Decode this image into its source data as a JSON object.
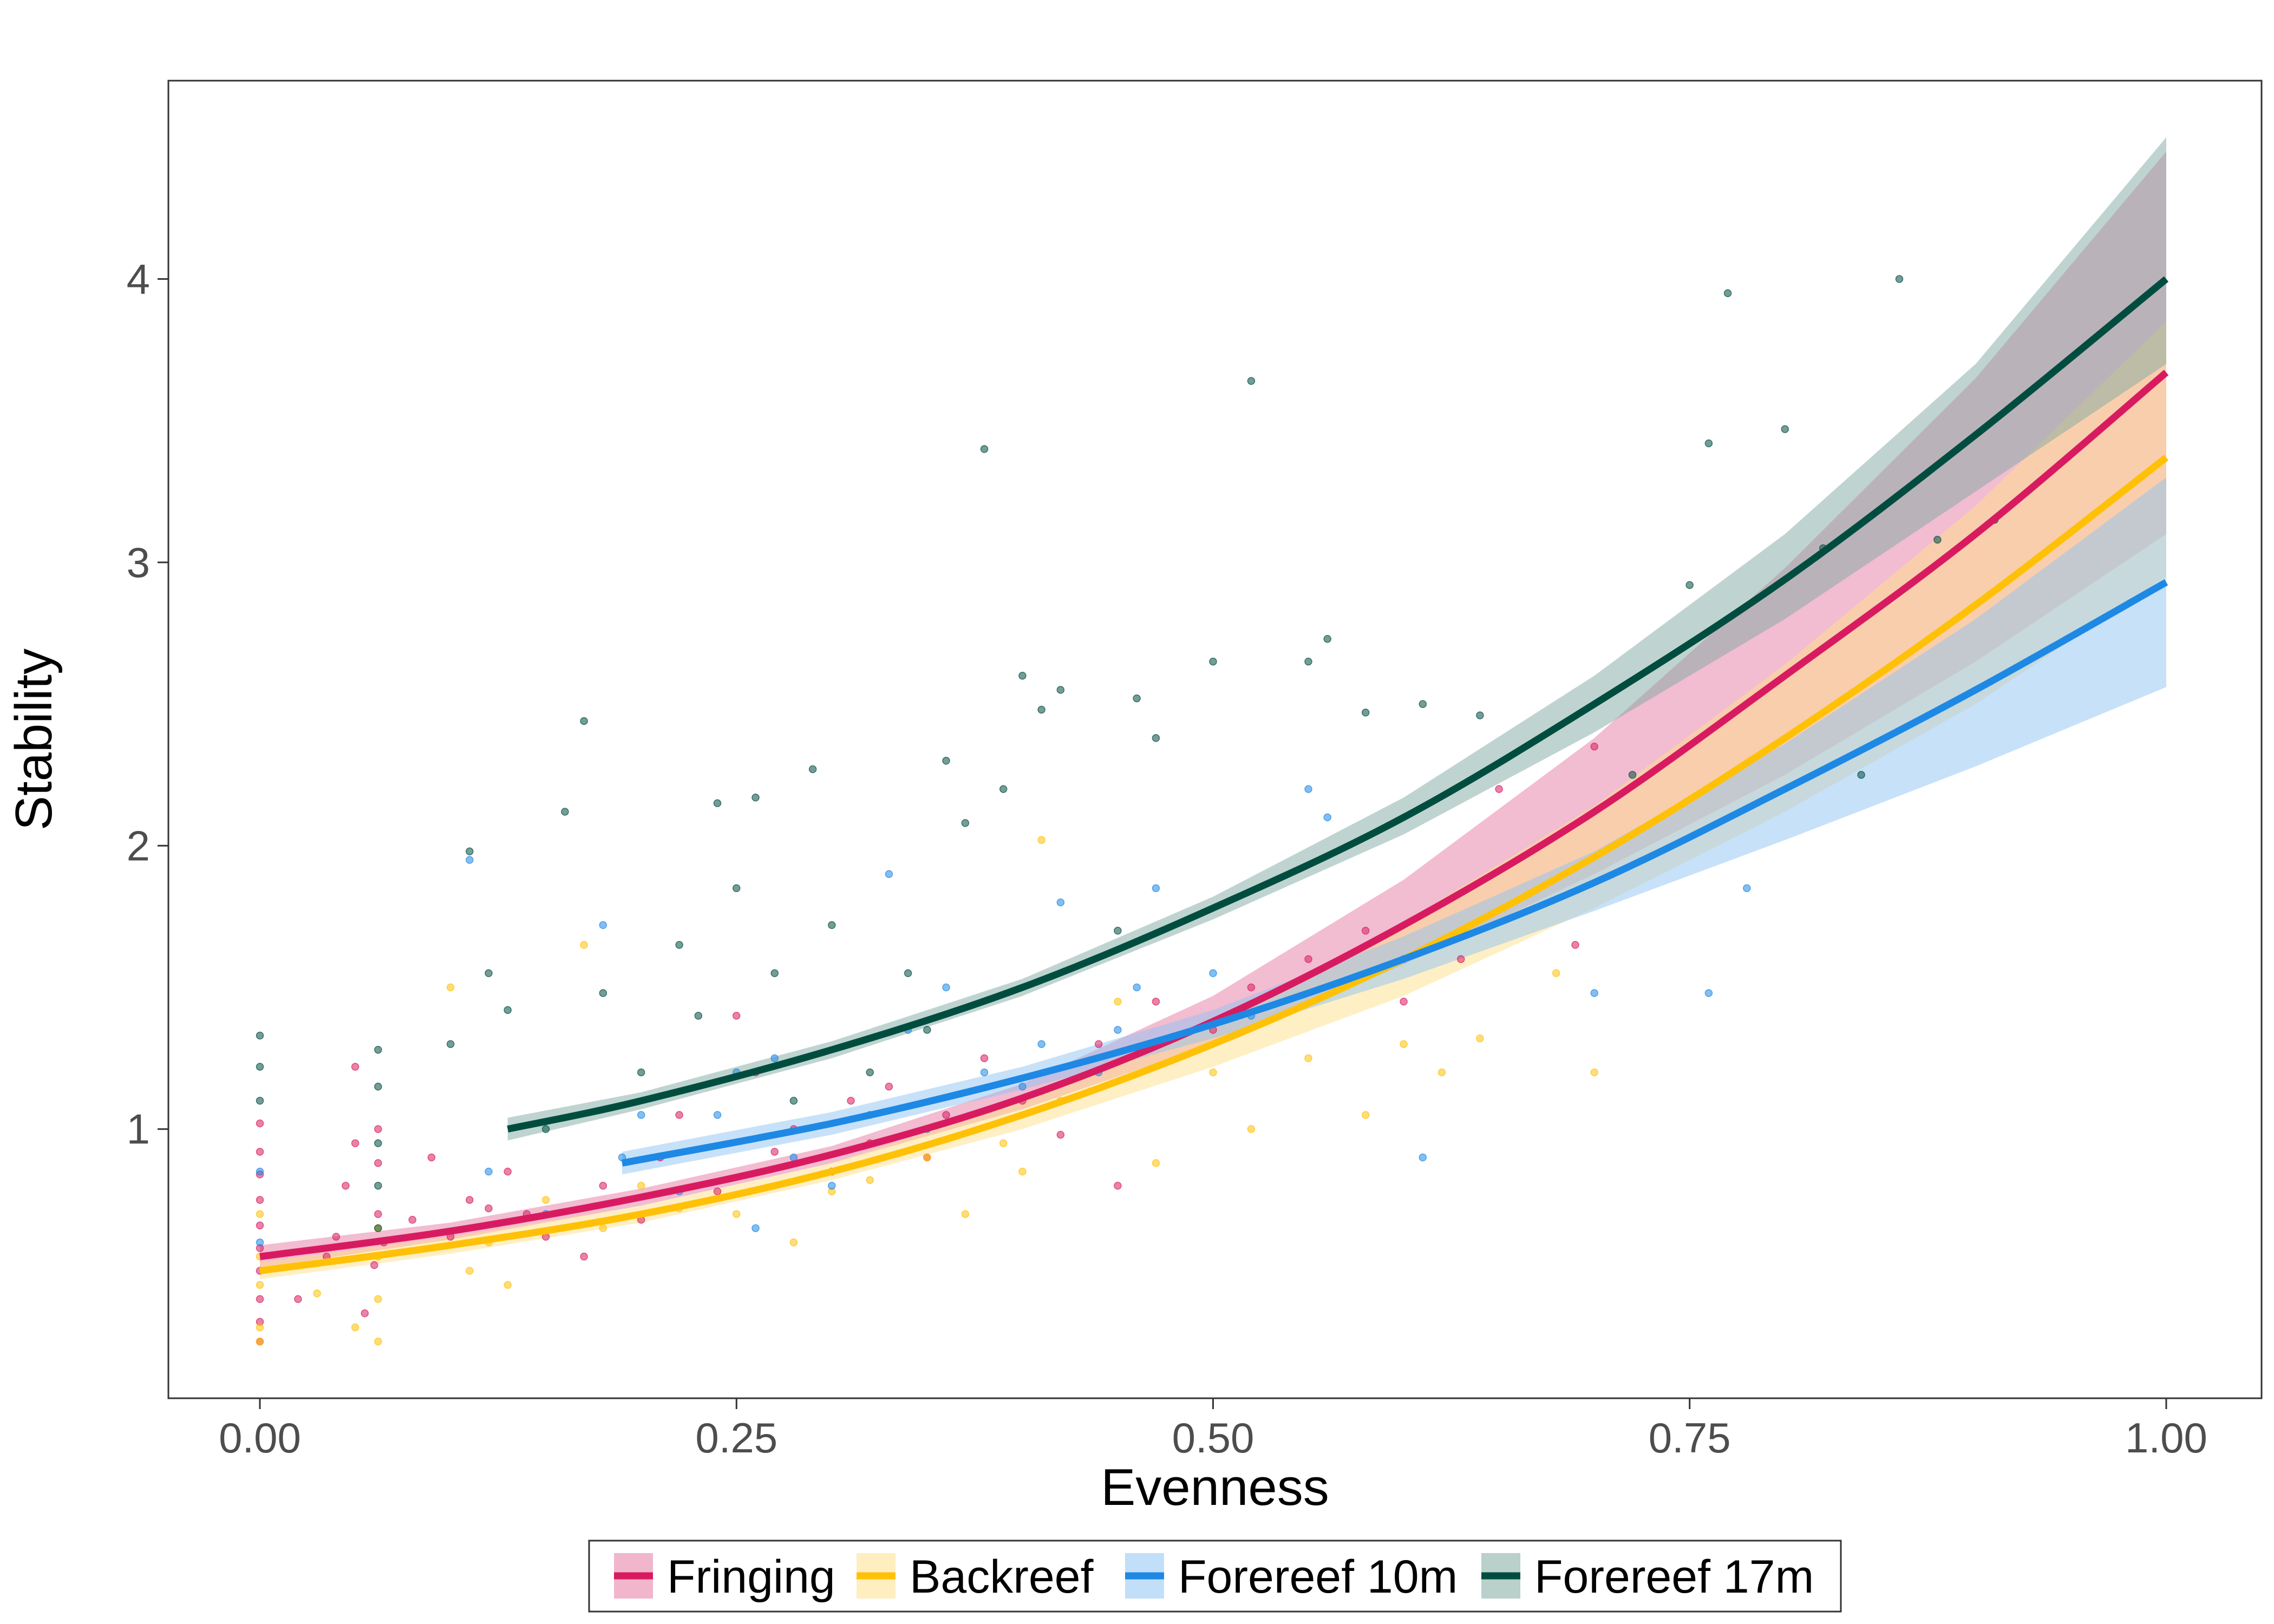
{
  "chart_data": {
    "type": "scatter",
    "xlabel": "Evenness",
    "ylabel": "Stability",
    "xlim": [
      -0.048,
      1.05
    ],
    "ylim": [
      0.05,
      4.7
    ],
    "x_ticks": [
      0.0,
      0.25,
      0.5,
      0.75,
      1.0
    ],
    "x_tick_labels": [
      "0.00",
      "0.25",
      "0.50",
      "0.75",
      "1.00"
    ],
    "y_ticks": [
      1,
      2,
      3,
      4
    ],
    "y_tick_labels": [
      "1",
      "2",
      "3",
      "4"
    ],
    "grid": false,
    "legend_position": "bottom",
    "series": [
      {
        "name": "Fringing",
        "color": "#d81b60",
        "band_color": "#e57aa3",
        "fit_x": [
          0.0,
          0.1,
          0.2,
          0.3,
          0.4,
          0.5,
          0.6,
          0.7,
          0.8,
          0.9,
          1.0
        ],
        "fit_y": [
          0.55,
          0.64,
          0.76,
          0.91,
          1.11,
          1.38,
          1.72,
          2.12,
          2.6,
          3.1,
          3.67
        ],
        "band_low": [
          0.51,
          0.61,
          0.73,
          0.88,
          1.07,
          1.3,
          1.58,
          1.9,
          2.25,
          2.65,
          3.1
        ],
        "band_high": [
          0.59,
          0.67,
          0.79,
          0.94,
          1.16,
          1.47,
          1.88,
          2.38,
          2.98,
          3.65,
          4.45
        ],
        "points": [
          [
            0.0,
            0.25
          ],
          [
            0.0,
            0.32
          ],
          [
            0.0,
            0.4
          ],
          [
            0.0,
            0.5
          ],
          [
            0.0,
            0.58
          ],
          [
            0.0,
            0.66
          ],
          [
            0.0,
            0.75
          ],
          [
            0.0,
            0.84
          ],
          [
            0.0,
            0.92
          ],
          [
            0.0,
            1.02
          ],
          [
            0.02,
            0.4
          ],
          [
            0.035,
            0.55
          ],
          [
            0.04,
            0.62
          ],
          [
            0.045,
            0.8
          ],
          [
            0.05,
            0.95
          ],
          [
            0.05,
            1.22
          ],
          [
            0.055,
            0.35
          ],
          [
            0.06,
            0.52
          ],
          [
            0.062,
            0.7
          ],
          [
            0.062,
            0.88
          ],
          [
            0.062,
            1.0
          ],
          [
            0.065,
            0.6
          ],
          [
            0.08,
            0.68
          ],
          [
            0.09,
            0.9
          ],
          [
            0.1,
            0.62
          ],
          [
            0.11,
            0.75
          ],
          [
            0.12,
            0.72
          ],
          [
            0.13,
            0.85
          ],
          [
            0.14,
            0.7
          ],
          [
            0.15,
            0.62
          ],
          [
            0.17,
            0.55
          ],
          [
            0.18,
            0.8
          ],
          [
            0.2,
            0.68
          ],
          [
            0.21,
            0.9
          ],
          [
            0.22,
            1.05
          ],
          [
            0.24,
            0.78
          ],
          [
            0.25,
            1.4
          ],
          [
            0.26,
            1.2
          ],
          [
            0.27,
            0.92
          ],
          [
            0.28,
            1.0
          ],
          [
            0.3,
            0.85
          ],
          [
            0.31,
            1.1
          ],
          [
            0.32,
            0.95
          ],
          [
            0.33,
            1.15
          ],
          [
            0.35,
            0.9
          ],
          [
            0.36,
            1.05
          ],
          [
            0.38,
            1.25
          ],
          [
            0.4,
            1.1
          ],
          [
            0.42,
            0.98
          ],
          [
            0.44,
            1.3
          ],
          [
            0.45,
            0.8
          ],
          [
            0.47,
            1.45
          ],
          [
            0.5,
            1.35
          ],
          [
            0.52,
            1.5
          ],
          [
            0.55,
            1.6
          ],
          [
            0.58,
            1.7
          ],
          [
            0.6,
            1.45
          ],
          [
            0.63,
            1.6
          ],
          [
            0.65,
            2.2
          ],
          [
            0.69,
            1.65
          ],
          [
            0.7,
            2.35
          ]
        ]
      },
      {
        "name": "Backreef",
        "color": "#ffc107",
        "band_color": "#ffe08a",
        "fit_x": [
          0.0,
          0.1,
          0.2,
          0.3,
          0.4,
          0.5,
          0.6,
          0.7,
          0.8,
          0.9,
          1.0
        ],
        "fit_y": [
          0.5,
          0.59,
          0.7,
          0.85,
          1.05,
          1.3,
          1.6,
          1.96,
          2.38,
          2.85,
          3.37
        ],
        "band_low": [
          0.47,
          0.56,
          0.67,
          0.82,
          1.0,
          1.22,
          1.47,
          1.78,
          2.12,
          2.5,
          2.95
        ],
        "band_high": [
          0.53,
          0.62,
          0.73,
          0.88,
          1.1,
          1.38,
          1.73,
          2.14,
          2.64,
          3.2,
          3.85
        ],
        "points": [
          [
            0.0,
            0.25
          ],
          [
            0.0,
            0.3
          ],
          [
            0.0,
            0.45
          ],
          [
            0.0,
            0.55
          ],
          [
            0.0,
            0.7
          ],
          [
            0.03,
            0.42
          ],
          [
            0.05,
            0.3
          ],
          [
            0.062,
            0.25
          ],
          [
            0.062,
            0.4
          ],
          [
            0.062,
            0.55
          ],
          [
            0.062,
            0.65
          ],
          [
            0.1,
            1.5
          ],
          [
            0.11,
            0.5
          ],
          [
            0.12,
            0.6
          ],
          [
            0.13,
            0.45
          ],
          [
            0.15,
            0.75
          ],
          [
            0.17,
            1.65
          ],
          [
            0.18,
            0.65
          ],
          [
            0.2,
            0.8
          ],
          [
            0.22,
            0.72
          ],
          [
            0.25,
            0.7
          ],
          [
            0.28,
            0.6
          ],
          [
            0.3,
            0.78
          ],
          [
            0.32,
            0.82
          ],
          [
            0.35,
            0.9
          ],
          [
            0.37,
            0.7
          ],
          [
            0.39,
            0.95
          ],
          [
            0.4,
            0.85
          ],
          [
            0.41,
            2.02
          ],
          [
            0.42,
            1.1
          ],
          [
            0.45,
            1.45
          ],
          [
            0.47,
            0.88
          ],
          [
            0.5,
            1.2
          ],
          [
            0.52,
            1.0
          ],
          [
            0.55,
            1.25
          ],
          [
            0.58,
            1.05
          ],
          [
            0.6,
            1.3
          ],
          [
            0.62,
            1.2
          ],
          [
            0.64,
            1.32
          ],
          [
            0.68,
            1.55
          ],
          [
            0.7,
            1.2
          ]
        ]
      },
      {
        "name": "Forereef 10m",
        "color": "#1e88e5",
        "band_color": "#90c4f4",
        "fit_x": [
          0.19,
          0.3,
          0.4,
          0.5,
          0.6,
          0.7,
          0.8,
          0.9,
          1.0
        ],
        "fit_y": [
          0.88,
          1.02,
          1.18,
          1.37,
          1.6,
          1.87,
          2.2,
          2.55,
          2.93
        ],
        "band_low": [
          0.84,
          0.98,
          1.14,
          1.32,
          1.53,
          1.77,
          2.02,
          2.28,
          2.56
        ],
        "band_high": [
          0.92,
          1.06,
          1.22,
          1.42,
          1.68,
          1.98,
          2.36,
          2.8,
          3.3
        ],
        "points": [
          [
            0.0,
            0.6
          ],
          [
            0.0,
            0.85
          ],
          [
            0.11,
            1.95
          ],
          [
            0.12,
            0.85
          ],
          [
            0.15,
            0.7
          ],
          [
            0.18,
            1.72
          ],
          [
            0.19,
            0.9
          ],
          [
            0.2,
            1.05
          ],
          [
            0.22,
            0.78
          ],
          [
            0.24,
            1.05
          ],
          [
            0.25,
            1.2
          ],
          [
            0.26,
            0.65
          ],
          [
            0.27,
            1.25
          ],
          [
            0.28,
            0.9
          ],
          [
            0.3,
            0.8
          ],
          [
            0.32,
            1.05
          ],
          [
            0.33,
            1.9
          ],
          [
            0.34,
            1.35
          ],
          [
            0.35,
            1.0
          ],
          [
            0.36,
            1.5
          ],
          [
            0.38,
            1.2
          ],
          [
            0.4,
            1.15
          ],
          [
            0.41,
            1.3
          ],
          [
            0.42,
            1.8
          ],
          [
            0.44,
            1.2
          ],
          [
            0.45,
            1.35
          ],
          [
            0.46,
            1.5
          ],
          [
            0.47,
            1.85
          ],
          [
            0.5,
            1.55
          ],
          [
            0.52,
            1.4
          ],
          [
            0.55,
            2.2
          ],
          [
            0.56,
            2.1
          ],
          [
            0.6,
            1.6
          ],
          [
            0.61,
            0.9
          ],
          [
            0.7,
            1.48
          ],
          [
            0.76,
            1.48
          ],
          [
            0.78,
            1.85
          ]
        ]
      },
      {
        "name": "Forereef 17m",
        "color": "#004d40",
        "band_color": "#7faaa1",
        "fit_x": [
          0.13,
          0.2,
          0.3,
          0.4,
          0.5,
          0.6,
          0.7,
          0.8,
          0.9,
          1.0
        ],
        "fit_y": [
          1.0,
          1.1,
          1.28,
          1.5,
          1.78,
          2.1,
          2.5,
          2.94,
          3.45,
          4.0
        ],
        "band_low": [
          0.96,
          1.07,
          1.25,
          1.47,
          1.74,
          2.04,
          2.4,
          2.8,
          3.25,
          3.7
        ],
        "band_high": [
          1.04,
          1.13,
          1.31,
          1.53,
          1.82,
          2.17,
          2.6,
          3.1,
          3.7,
          4.5
        ],
        "points": [
          [
            0.0,
            1.1
          ],
          [
            0.0,
            1.22
          ],
          [
            0.0,
            1.33
          ],
          [
            0.062,
            0.65
          ],
          [
            0.062,
            0.8
          ],
          [
            0.062,
            0.95
          ],
          [
            0.062,
            1.15
          ],
          [
            0.062,
            1.28
          ],
          [
            0.1,
            1.3
          ],
          [
            0.11,
            1.98
          ],
          [
            0.12,
            1.55
          ],
          [
            0.13,
            1.42
          ],
          [
            0.15,
            1.0
          ],
          [
            0.16,
            2.12
          ],
          [
            0.17,
            2.44
          ],
          [
            0.18,
            1.48
          ],
          [
            0.2,
            1.2
          ],
          [
            0.22,
            1.65
          ],
          [
            0.23,
            1.4
          ],
          [
            0.24,
            2.15
          ],
          [
            0.25,
            1.85
          ],
          [
            0.26,
            2.17
          ],
          [
            0.27,
            1.55
          ],
          [
            0.28,
            1.1
          ],
          [
            0.29,
            2.27
          ],
          [
            0.3,
            1.72
          ],
          [
            0.32,
            1.2
          ],
          [
            0.34,
            1.55
          ],
          [
            0.35,
            1.35
          ],
          [
            0.36,
            2.3
          ],
          [
            0.37,
            2.08
          ],
          [
            0.38,
            3.4
          ],
          [
            0.39,
            2.2
          ],
          [
            0.4,
            2.6
          ],
          [
            0.41,
            2.48
          ],
          [
            0.42,
            2.55
          ],
          [
            0.45,
            1.7
          ],
          [
            0.46,
            2.52
          ],
          [
            0.47,
            2.38
          ],
          [
            0.5,
            2.65
          ],
          [
            0.52,
            3.64
          ],
          [
            0.55,
            2.65
          ],
          [
            0.56,
            2.73
          ],
          [
            0.58,
            2.47
          ],
          [
            0.61,
            2.5
          ],
          [
            0.64,
            2.46
          ],
          [
            0.72,
            2.25
          ],
          [
            0.75,
            2.92
          ],
          [
            0.76,
            3.42
          ],
          [
            0.77,
            3.95
          ],
          [
            0.8,
            3.47
          ],
          [
            0.82,
            3.05
          ],
          [
            0.84,
            2.25
          ],
          [
            0.86,
            4.0
          ],
          [
            0.88,
            3.08
          ],
          [
            0.91,
            3.15
          ]
        ]
      }
    ]
  }
}
